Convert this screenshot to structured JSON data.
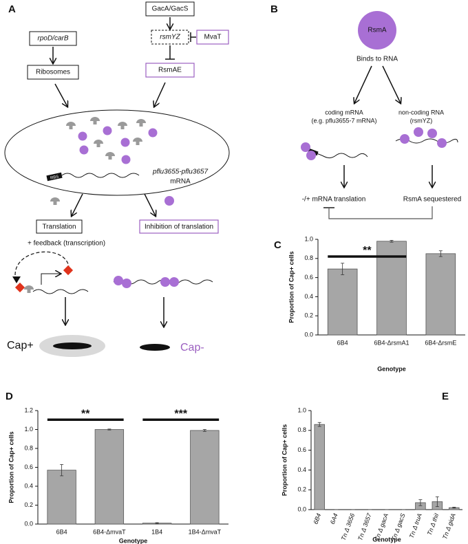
{
  "panel_a": {
    "label": "A",
    "gac": "GacA/GacS",
    "rpod": "rpoD/carB",
    "rsmyz": "rsmYZ",
    "mvat": "MvaT",
    "ribosomes": "Ribosomes",
    "rsmae": "RsmAE",
    "gene": "pflu3655-pflu3657",
    "mrna": "mRNA",
    "rbs": "RBS",
    "translation": "Translation",
    "inhibition": "Inhibition of translation",
    "feedback": "+ feedback (transcription)",
    "cap_plus": "Cap+",
    "cap_minus": "Cap-"
  },
  "panel_b": {
    "label": "B",
    "rsma": "RsmA",
    "binds": "Binds to RNA",
    "coding": "coding mRNA",
    "coding_note": "(e.g. pflu3655-7 mRNA)",
    "noncoding": "non-coding RNA",
    "noncoding_note": "(rsmYZ)",
    "translation": "-/+ mRNA translation",
    "sequestered": "RsmA sequestered"
  },
  "chart_data": [
    {
      "type": "bar",
      "label": "C",
      "categories": [
        "6B4",
        "6B4-ΔrsmA1",
        "6B4-ΔrsmE"
      ],
      "values": [
        0.69,
        0.98,
        0.85
      ],
      "errors": [
        0.06,
        0.01,
        0.03
      ],
      "color": "#a6a6a6",
      "ylim": [
        0,
        1
      ],
      "yticks": [
        {
          "value": 0,
          "label": "0.0"
        },
        0.2,
        0.4,
        0.6,
        0.8,
        {
          "value": 1,
          "label": "1.0"
        }
      ],
      "ylabel": "Proportion of Cap+ cells",
      "xlabel": "Genotype",
      "annotations": [
        "**"
      ]
    },
    {
      "type": "bar",
      "label": "D",
      "categories": [
        "6B4",
        "6B4-ΔmvaT",
        "1B4",
        "1B4-ΔmvaT"
      ],
      "values": [
        0.57,
        1.0,
        0.01,
        0.99
      ],
      "errors": [
        0.06,
        0.005,
        0.005,
        0.01
      ],
      "color": "#a6a6a6",
      "ylim": [
        0,
        1.2
      ],
      "yticks": [
        {
          "value": 0,
          "label": "0.0"
        },
        0.2,
        0.4,
        0.6,
        0.8,
        {
          "value": 1,
          "label": "1.0"
        },
        1.2
      ],
      "ylabel": "Proportion of Cap+ cells",
      "xlabel": "Genotype",
      "annotations": [
        "**",
        "***"
      ]
    },
    {
      "type": "bar",
      "label": "E",
      "categories": [
        "6B4",
        "6A4",
        "Tn Δ 3656",
        "Tn Δ 3657",
        "Tn Δ gacA",
        "Tn Δ gacS",
        "Tn Δ truA",
        "Tn Δ thiI",
        "Tn Δ gidA"
      ],
      "values": [
        0.86,
        0,
        0,
        0,
        0,
        0,
        0.07,
        0.08,
        0.02
      ],
      "errors": [
        0.02,
        0,
        0,
        0,
        0,
        0,
        0.03,
        0.05,
        0.005
      ],
      "color": "#a6a6a6",
      "ylim": [
        0,
        1
      ],
      "yticks": [
        {
          "value": 0,
          "label": "0.0"
        },
        0.2,
        0.4,
        0.6,
        0.8,
        {
          "value": 1,
          "label": "1.0"
        }
      ],
      "ylabel": "Proportion of Cap+ cells",
      "xlabel": "Genotype",
      "annotations": []
    }
  ]
}
